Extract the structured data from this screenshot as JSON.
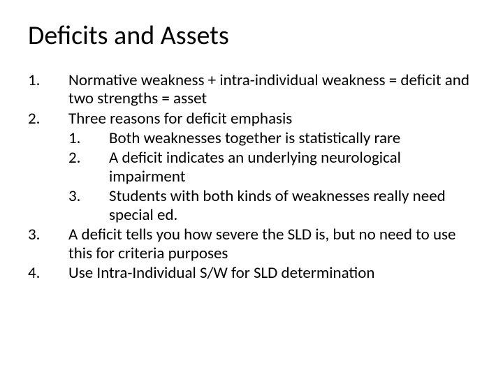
{
  "title": "Deficits and Assets",
  "items": {
    "i1": {
      "n": "1.",
      "t": "Normative weakness + intra-individual weakness = deficit and two strengths = asset"
    },
    "i2": {
      "n": "2.",
      "t": "Three reasons for deficit emphasis"
    },
    "i2_1": {
      "n": "1.",
      "t": "Both weaknesses together is statistically rare"
    },
    "i2_2": {
      "n": "2.",
      "t": "A deficit indicates an underlying neurological impairment"
    },
    "i2_3": {
      "n": "3.",
      "t": "Students with both kinds of weaknesses really need special ed."
    },
    "i3": {
      "n": "3.",
      "t": "A deficit tells you how severe the SLD is, but no need to use this for criteria purposes"
    },
    "i4": {
      "n": "4.",
      "t": "Use Intra-Individual S/W for SLD determination"
    }
  },
  "style": {
    "background_color": "#ffffff",
    "text_color": "#000000",
    "title_fontsize": 38,
    "body_fontsize": 23,
    "font_family": "Calibri"
  }
}
